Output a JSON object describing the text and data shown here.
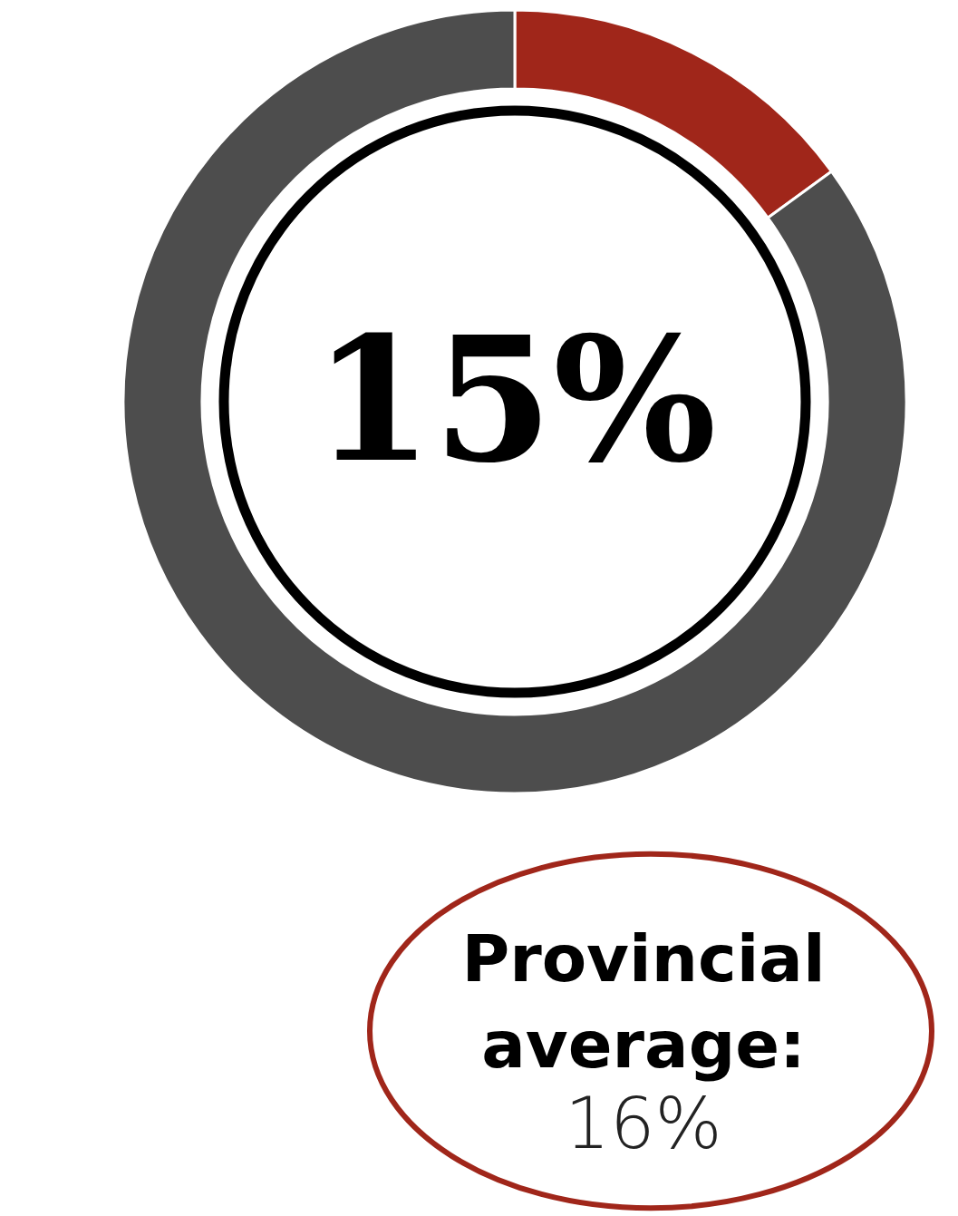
{
  "chart_data": {
    "type": "donut",
    "categories": [
      null,
      null
    ],
    "values": [
      15,
      85
    ],
    "colors": [
      "#a0261a",
      "#4d4d4d"
    ],
    "annotations": [
      "15%",
      "Provincial average:",
      "16%"
    ]
  }
}
